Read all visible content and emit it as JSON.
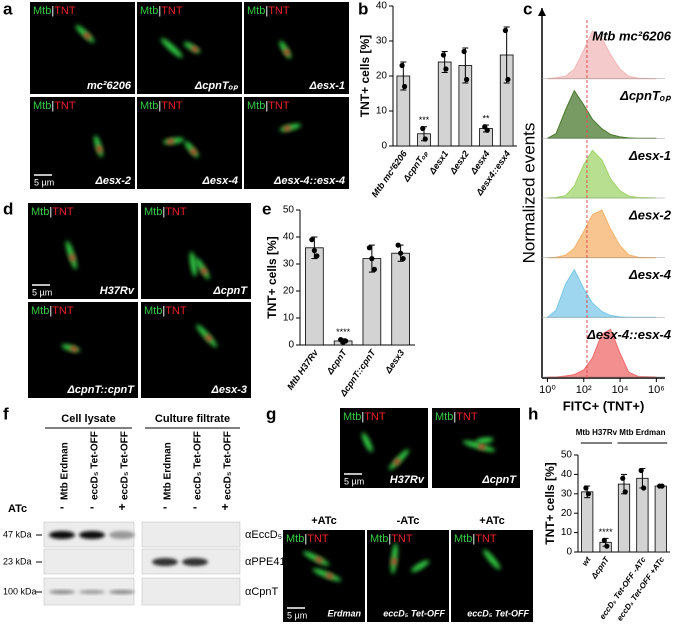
{
  "panel_labels": [
    "a",
    "b",
    "c",
    "d",
    "e",
    "f",
    "g",
    "h"
  ],
  "micrographs": {
    "channels": [
      "Mtb",
      "|",
      "TNT"
    ],
    "scale_bar": "5 µm",
    "a": [
      "mc²6206",
      "ΔcpnTₒₚ",
      "Δesx-1",
      "Δesx-2",
      "Δesx-4",
      "Δesx-4::esx-4"
    ],
    "d": [
      "H37Rv",
      "ΔcpnT",
      "ΔcpnT::cpnT",
      "Δesx-3"
    ],
    "g": {
      "top": [
        "H37Rv",
        "ΔcpnT"
      ],
      "conditions": [
        "+ATc",
        "-ATc",
        "+ATc"
      ],
      "bottom": [
        "Erdman",
        "eccD₅ Tet-OFF",
        "eccD₅ Tet-OFF"
      ]
    }
  },
  "blot": {
    "groups": [
      "Cell lysate",
      "Culture filtrate"
    ],
    "lanes": [
      "Mtb Erdman",
      "eccD₅ Tet-OFF",
      "eccD₅ Tet-OFF"
    ],
    "treatment_label": "ATc",
    "treatment": [
      "-",
      "-",
      "+"
    ],
    "markers": [
      "47 kDa",
      "23 kDa",
      "100 kDa"
    ],
    "antibodies": [
      "αEccD₅",
      "αPPE41",
      "αCpnT"
    ]
  },
  "chart_data": [
    {
      "type": "bar",
      "ylabel": "TNT+ cells [%]",
      "categories": [
        "Mtb mc²6206",
        "ΔcpnTₒₚ",
        "Δesx1",
        "Δesx2",
        "Δesx4",
        "Δesx4::esx4"
      ],
      "values": [
        20,
        3.5,
        24,
        23,
        5,
        26
      ],
      "errors": [
        4,
        2,
        3,
        5,
        1,
        8
      ],
      "points": [
        [
          23,
          17
        ],
        [
          5,
          2
        ],
        [
          26,
          22
        ],
        [
          27,
          19
        ],
        [
          5.5,
          4.5
        ],
        [
          33,
          19
        ]
      ],
      "annotations": [
        null,
        "***",
        null,
        null,
        "**",
        null
      ],
      "color": "#d3d3d3",
      "ylim": [
        0,
        40
      ],
      "yticks": [
        0,
        10,
        20,
        30,
        40
      ]
    },
    {
      "type": "ridgeline",
      "xlabel": "FITC+ (TNT+)",
      "ylabel": "Normalized events",
      "log_x": true,
      "x": [
        1,
        3,
        10,
        30,
        100,
        300,
        1000,
        3000,
        10000,
        30000,
        100000,
        1000000
      ],
      "xlim": [
        0.5,
        3000000
      ],
      "xticks": [
        {
          "value": 1,
          "label": "10⁰"
        },
        {
          "value": 100,
          "label": "10²"
        },
        {
          "value": 10000,
          "label": "10⁴"
        },
        {
          "value": 1000000,
          "label": "10⁶"
        }
      ],
      "ylim": [
        0,
        100
      ],
      "threshold": 150,
      "threshold_color": "#e05050",
      "series": [
        {
          "name": "Mtb mc²6206",
          "color": "#f2b8b8",
          "values": [
            0,
            2,
            5,
            20,
            60,
            100,
            85,
            50,
            20,
            5,
            1,
            0
          ]
        },
        {
          "name": "ΔcpnTₒₚ",
          "color": "#4a7a2e",
          "values": [
            0,
            10,
            60,
            100,
            70,
            40,
            20,
            8,
            3,
            1,
            0,
            0
          ]
        },
        {
          "name": "Δesx-1",
          "color": "#9fd46a",
          "values": [
            0,
            1,
            5,
            25,
            70,
            100,
            80,
            40,
            15,
            4,
            1,
            0
          ]
        },
        {
          "name": "Δesx-2",
          "color": "#f6b26b",
          "values": [
            0,
            1,
            5,
            20,
            55,
            90,
            100,
            60,
            25,
            6,
            1,
            0
          ]
        },
        {
          "name": "Δesx-4",
          "color": "#7cc8e8",
          "values": [
            0,
            15,
            70,
            100,
            60,
            30,
            12,
            4,
            1,
            0,
            0,
            0
          ]
        },
        {
          "name": "Δesx-4::esx-4",
          "color": "#f06a6a",
          "values": [
            0,
            0,
            2,
            5,
            15,
            40,
            90,
            100,
            50,
            10,
            1,
            0
          ]
        }
      ]
    },
    {
      "type": "bar",
      "ylabel": "TNT+ cells [%]",
      "categories": [
        "Mtb H37Rv",
        "ΔcpnT",
        "ΔcpnT::cpnT",
        "Δesx3"
      ],
      "values": [
        36,
        1.5,
        32,
        34
      ],
      "errors": [
        4,
        0.8,
        5,
        3
      ],
      "points": [
        [
          39,
          35,
          33
        ],
        [
          2,
          1,
          1.5
        ],
        [
          36,
          32,
          28
        ],
        [
          37,
          34,
          32
        ]
      ],
      "annotations": [
        null,
        "****",
        null,
        null
      ],
      "color": "#d3d3d3",
      "ylim": [
        0,
        50
      ],
      "yticks": [
        0,
        10,
        20,
        30,
        40,
        50
      ]
    },
    {
      "type": "bar",
      "ylabel": "TNT+ cells [%]",
      "group_labels": [
        "Mtb H37Rv",
        "Mtb Erdman"
      ],
      "categories": [
        "wt",
        "ΔcpnT",
        null,
        "eccD₅ Tet-OFF -ATc",
        "eccD₅ Tet-OFF +ATc"
      ],
      "values": [
        31,
        5,
        35,
        38,
        34
      ],
      "errors": [
        3,
        2,
        5,
        5,
        0.5
      ],
      "points": [
        [
          33,
          30
        ],
        [
          6,
          3
        ],
        [
          38,
          31
        ],
        [
          42,
          33
        ],
        [
          34,
          34
        ]
      ],
      "annotations": [
        null,
        "****",
        null,
        null,
        null
      ],
      "color": "#d3d3d3",
      "ylim": [
        0,
        50
      ],
      "yticks": [
        0,
        10,
        20,
        30,
        40,
        50
      ]
    }
  ]
}
